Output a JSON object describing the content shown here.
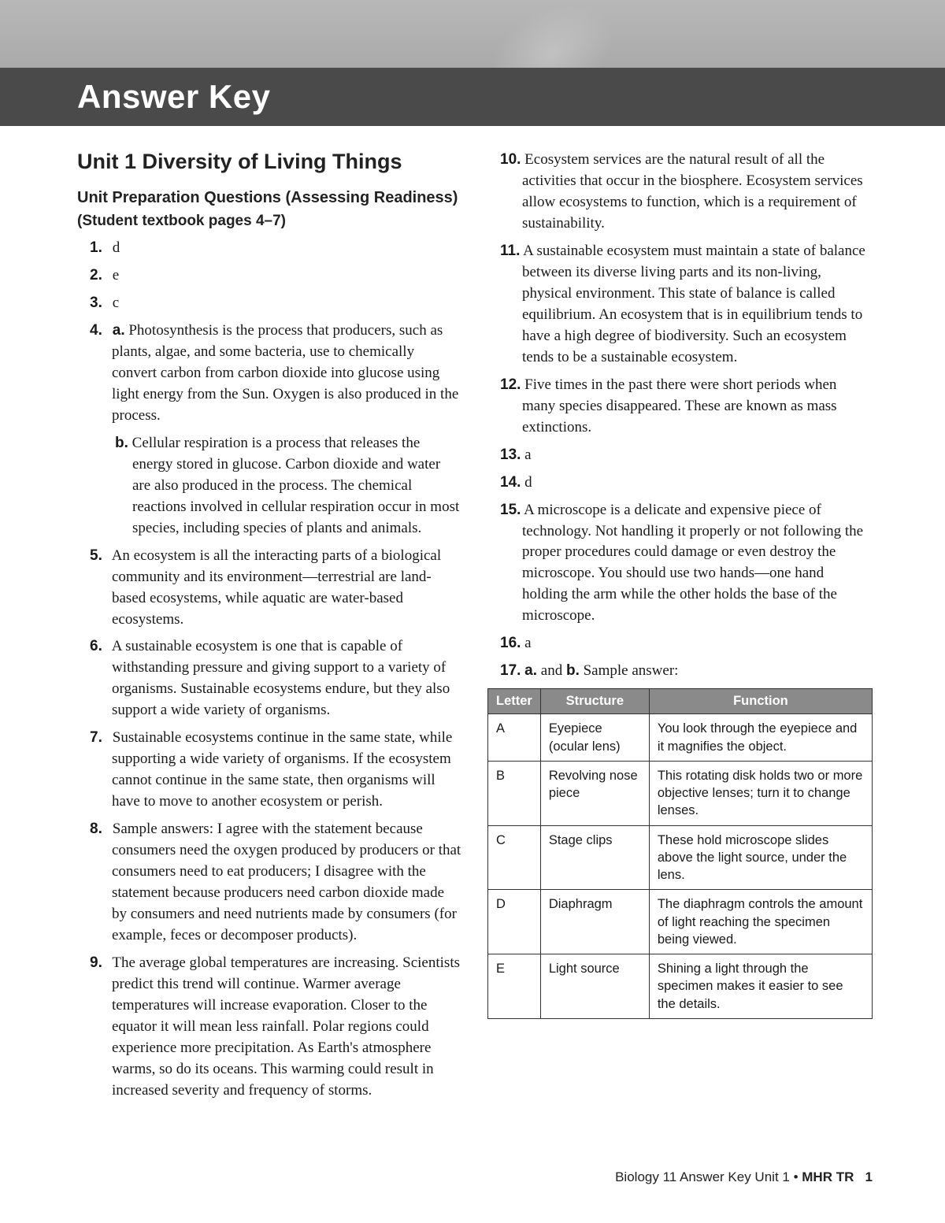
{
  "header": {
    "title": "Answer Key"
  },
  "unit_title": "Unit 1 Diversity of Living Things",
  "subheading1": "Unit Preparation Questions (Assessing Readiness)",
  "subheading2": "(Student textbook pages 4–7)",
  "a1": {
    "num": "1.",
    "text": "d"
  },
  "a2": {
    "num": "2.",
    "text": "e"
  },
  "a3": {
    "num": "3.",
    "text": "c"
  },
  "a4": {
    "num": "4.",
    "a_letter": "a.",
    "a_text": "Photosynthesis is the process that producers, such as plants, algae, and some bacteria, use to chemically convert carbon from carbon dioxide into glucose using light energy from the Sun. Oxygen is also produced in the process.",
    "b_letter": "b.",
    "b_text": "Cellular respiration is a process that releases the energy stored in glucose. Carbon dioxide and water are also produced in the process. The chemical reactions involved in cellular respiration occur in most species, including species of plants and animals."
  },
  "a5": {
    "num": "5.",
    "text": "An ecosystem is all the interacting parts of a biological community and its environment—terrestrial are land-based ecosystems, while aquatic are water-based ecosystems."
  },
  "a6": {
    "num": "6.",
    "text": "A sustainable ecosystem is one that is capable of withstanding pressure and giving support to a variety of organisms. Sustainable ecosystems endure, but they also support a wide variety of organisms."
  },
  "a7": {
    "num": "7.",
    "text": "Sustainable ecosystems continue in the same state, while supporting a wide variety of organisms. If the ecosystem cannot continue in the same state, then organisms will have to move to another ecosystem or perish."
  },
  "a8": {
    "num": "8.",
    "text": "Sample answers: I agree with the statement because consumers need the oxygen produced by producers or that consumers need to eat producers; I disagree with the statement because producers need carbon dioxide made by consumers and need nutrients made by consumers (for example, feces or decomposer products)."
  },
  "a9": {
    "num": "9.",
    "text": "The average global temperatures are increasing. Scientists predict this trend will continue. Warmer average temperatures will increase evaporation. Closer to the equator it will mean less rainfall. Polar regions could experience more precipitation. As Earth's atmosphere warms, so do its oceans. This warming could result in increased severity and frequency of storms."
  },
  "a10": {
    "num": "10.",
    "text": "Ecosystem services are the natural result of all the activities that occur in the biosphere. Ecosystem services allow ecosystems to function, which is a requirement of sustainability."
  },
  "a11": {
    "num": "11.",
    "text": "A sustainable ecosystem must maintain a state of balance between its diverse living parts and its non-living, physical environment. This state of balance is called equilibrium. An ecosystem that is in equilibrium tends to have a high degree of biodiversity. Such an ecosystem tends to be a sustainable ecosystem."
  },
  "a12": {
    "num": "12.",
    "text": "Five times in the past there were short periods when many species disappeared. These are known as mass extinctions."
  },
  "a13": {
    "num": "13.",
    "text": "a"
  },
  "a14": {
    "num": "14.",
    "text": "d"
  },
  "a15": {
    "num": "15.",
    "text": "A microscope is a delicate and expensive piece of technology. Not handling it properly or not following the proper procedures could damage or even destroy the microscope. You should use two hands—one hand holding the arm while the other holds the base of the microscope."
  },
  "a16": {
    "num": "16.",
    "text": "a"
  },
  "a17": {
    "num": "17.",
    "ab": "a.",
    "and": " and ",
    "b": "b.",
    "text": " Sample answer:"
  },
  "table": {
    "headers": {
      "c1": "Letter",
      "c2": "Structure",
      "c3": "Function"
    },
    "rows": [
      {
        "c1": "A",
        "c2": "Eyepiece (ocular lens)",
        "c3": "You look through the eyepiece and it magnifies the object."
      },
      {
        "c1": "B",
        "c2": "Revolving nose piece",
        "c3": "This rotating disk holds two or more objective lenses; turn it to change lenses."
      },
      {
        "c1": "C",
        "c2": "Stage clips",
        "c3": "These hold  microscope slides above the light source, under the lens."
      },
      {
        "c1": "D",
        "c2": "Diaphragm",
        "c3": "The diaphragm controls the amount of light reaching the specimen being viewed."
      },
      {
        "c1": "E",
        "c2": "Light source",
        "c3": "Shining a light through the specimen makes it easier to see the details."
      }
    ]
  },
  "footer": {
    "left": "Biology 11  Answer Key Unit 1 • ",
    "mid": "MHR TR",
    "page": "1"
  }
}
